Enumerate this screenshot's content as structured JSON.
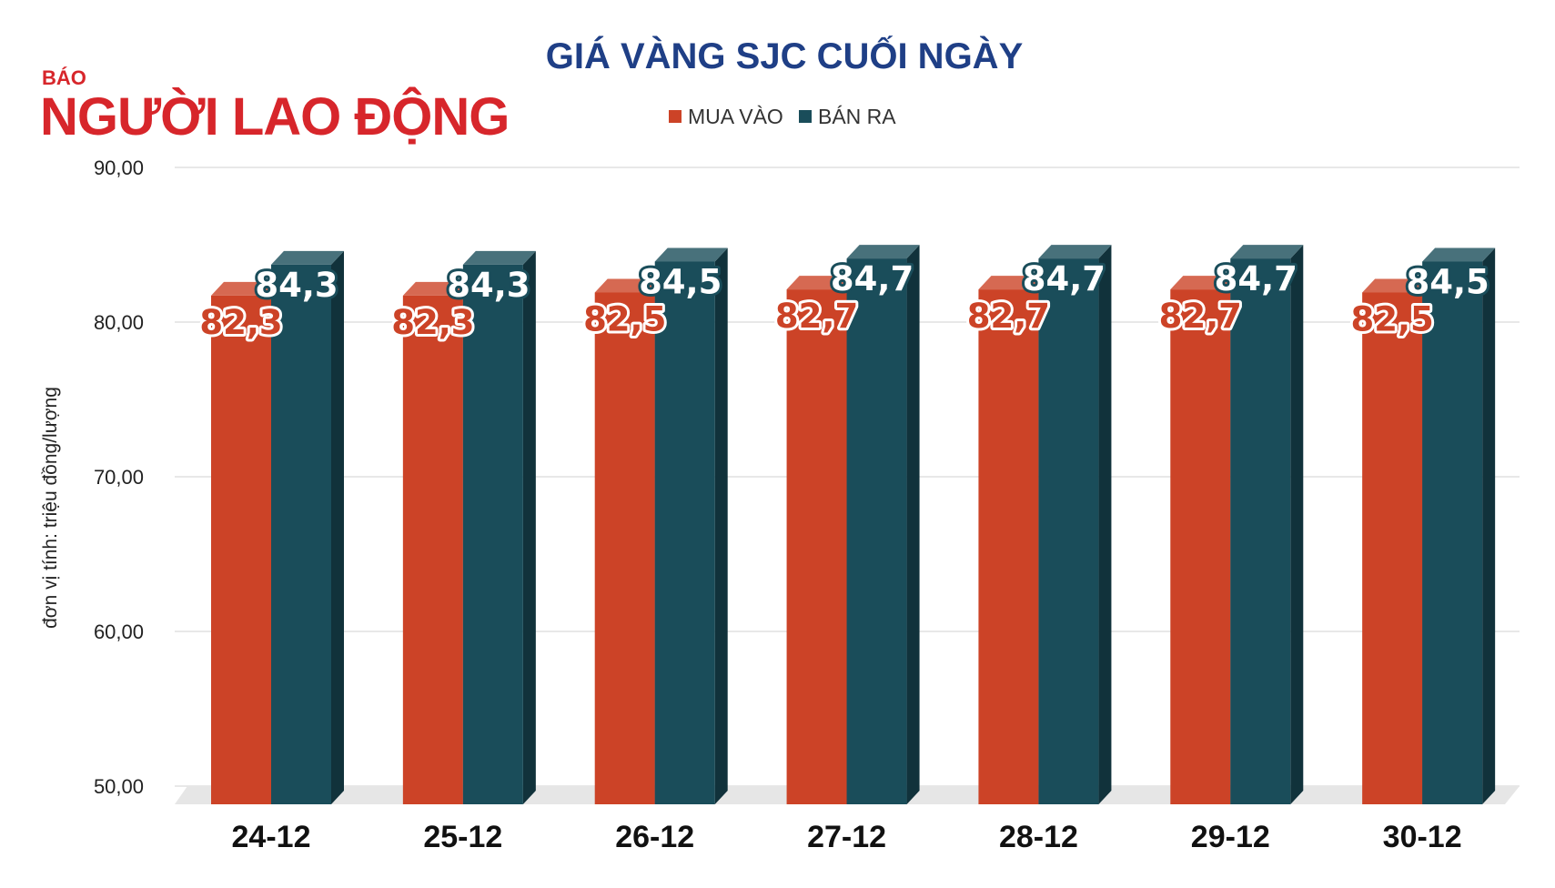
{
  "logo": {
    "small": "BÁO",
    "main": "NGƯỜI LAO ĐỘNG"
  },
  "chart_data": {
    "type": "bar",
    "title": "GIÁ VÀNG SJC CUỐI NGÀY",
    "ylabel": "đơn vị tính: triệu đồng/lượng",
    "xlabel": "",
    "categories": [
      "24-12",
      "25-12",
      "26-12",
      "27-12",
      "28-12",
      "29-12",
      "30-12"
    ],
    "series": [
      {
        "name": "MUA VÀO",
        "color": "#cc4327",
        "values": [
          82.3,
          82.3,
          82.5,
          82.7,
          82.7,
          82.7,
          82.5
        ],
        "labels": [
          "82,3",
          "82,3",
          "82,5",
          "82,7",
          "82,7",
          "82,7",
          "82,5"
        ]
      },
      {
        "name": "BÁN RA",
        "color": "#1a4d5a",
        "values": [
          84.3,
          84.3,
          84.5,
          84.7,
          84.7,
          84.7,
          84.5
        ],
        "labels": [
          "84,3",
          "84,3",
          "84,5",
          "84,7",
          "84,7",
          "84,7",
          "84,5"
        ]
      }
    ],
    "ylim": [
      50,
      90
    ],
    "yticks": [
      "50,00",
      "60,00",
      "70,00",
      "80,00",
      "90,00"
    ],
    "grid": true,
    "legend_position": "top-center"
  }
}
